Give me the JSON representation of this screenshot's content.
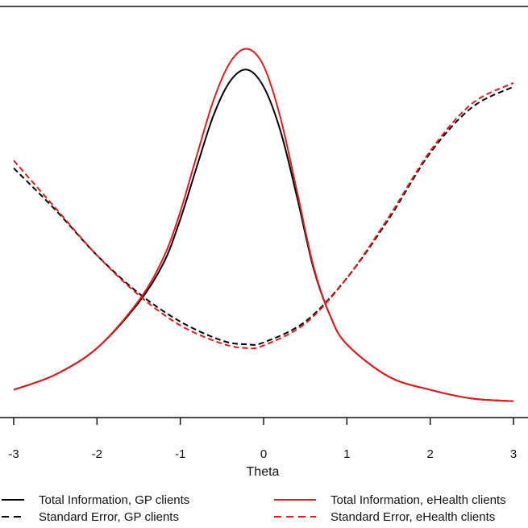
{
  "chart_data": {
    "type": "line",
    "title": "",
    "xlabel": "Theta",
    "ylabel": "",
    "xlim": [
      -3.0,
      3.0
    ],
    "ylim": [
      0,
      1
    ],
    "x_ticks": [
      -3,
      -2,
      -1,
      0,
      1,
      2,
      3
    ],
    "x_tick_labels": [
      "-3",
      "-2",
      "-1",
      "0",
      "1",
      "2",
      "3"
    ],
    "grid": false,
    "legend_position": "bottom",
    "colors": {
      "gp": "#000000",
      "ehealth": "#e41a1c"
    },
    "series": [
      {
        "name": "Total Information, GP clients",
        "color": "#000000",
        "dash": "solid",
        "x": [
          -3.0,
          -2.5,
          -2.0,
          -1.5,
          -1.2,
          -1.0,
          -0.8,
          -0.6,
          -0.4,
          -0.2,
          0.0,
          0.2,
          0.4,
          0.6,
          0.8,
          1.0,
          1.5,
          2.0,
          2.5,
          3.0
        ],
        "values": [
          0.035,
          0.075,
          0.145,
          0.265,
          0.37,
          0.485,
          0.625,
          0.76,
          0.85,
          0.88,
          0.835,
          0.72,
          0.545,
          0.355,
          0.23,
          0.155,
          0.07,
          0.035,
          0.012,
          0.005
        ]
      },
      {
        "name": "Total Information, eHealth clients",
        "color": "#e41a1c",
        "dash": "solid",
        "x": [
          -3.0,
          -2.5,
          -2.0,
          -1.5,
          -1.2,
          -1.0,
          -0.8,
          -0.6,
          -0.4,
          -0.2,
          0.0,
          0.2,
          0.4,
          0.6,
          0.8,
          1.0,
          1.5,
          2.0,
          2.5,
          3.0
        ],
        "values": [
          0.035,
          0.075,
          0.145,
          0.27,
          0.385,
          0.505,
          0.655,
          0.8,
          0.9,
          0.935,
          0.89,
          0.755,
          0.56,
          0.36,
          0.23,
          0.155,
          0.07,
          0.035,
          0.012,
          0.005
        ]
      },
      {
        "name": "Standard Error, GP clients",
        "color": "#000000",
        "dash": "dashed",
        "x": [
          -3.0,
          -2.5,
          -2.0,
          -1.5,
          -1.0,
          -0.5,
          -0.2,
          0.0,
          0.5,
          1.0,
          1.5,
          2.0,
          2.5,
          3.0
        ],
        "values": [
          0.62,
          0.51,
          0.39,
          0.29,
          0.215,
          0.165,
          0.155,
          0.16,
          0.215,
          0.33,
          0.485,
          0.66,
          0.78,
          0.835
        ]
      },
      {
        "name": "Standard Error, eHealth clients",
        "color": "#e41a1c",
        "dash": "dashed",
        "x": [
          -3.0,
          -2.5,
          -2.0,
          -1.5,
          -1.0,
          -0.5,
          -0.2,
          0.0,
          0.5,
          1.0,
          1.5,
          2.0,
          2.5,
          3.0
        ],
        "values": [
          0.64,
          0.515,
          0.39,
          0.285,
          0.205,
          0.157,
          0.145,
          0.152,
          0.21,
          0.33,
          0.49,
          0.665,
          0.79,
          0.845
        ]
      }
    ]
  },
  "legend": {
    "items": [
      {
        "label": "Total Information, GP clients",
        "color": "#000000",
        "dash": "solid"
      },
      {
        "label": "Total Information, eHealth clients",
        "color": "#e41a1c",
        "dash": "solid"
      },
      {
        "label": "Standard Error, GP clients",
        "color": "#000000",
        "dash": "dashed"
      },
      {
        "label": "Standard Error, eHealth clients",
        "color": "#e41a1c",
        "dash": "dashed"
      }
    ]
  }
}
